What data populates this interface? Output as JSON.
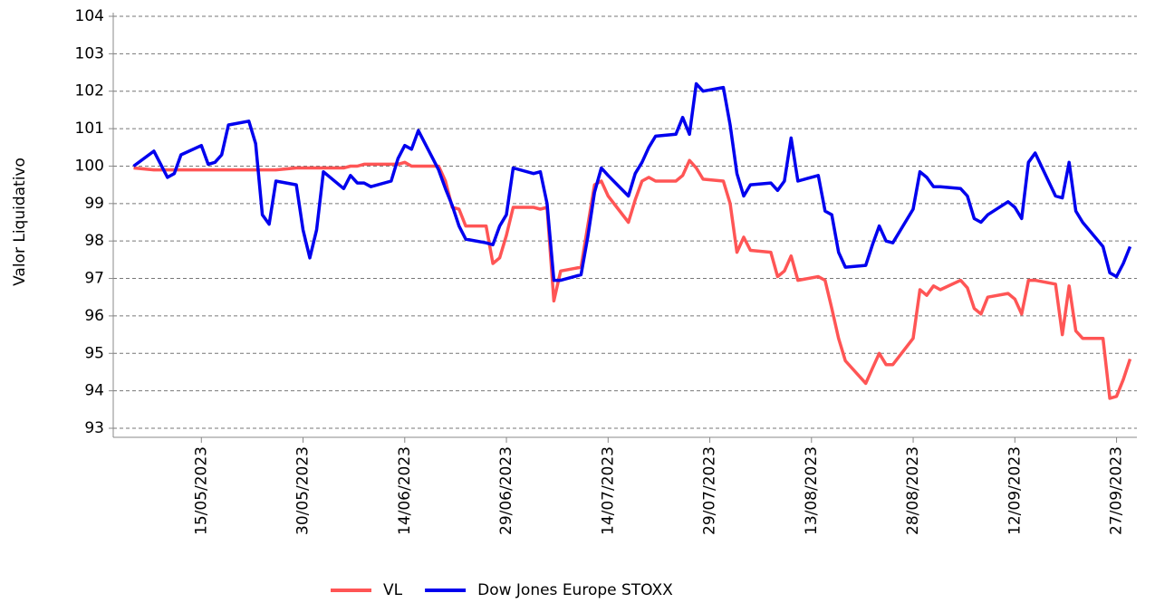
{
  "chart_data": {
    "type": "line",
    "y_label": "Valor Liquidativo",
    "x": [
      "05/05/2023",
      "08/05/2023",
      "10/05/2023",
      "11/05/2023",
      "12/05/2023",
      "15/05/2023",
      "16/05/2023",
      "17/05/2023",
      "18/05/2023",
      "19/05/2023",
      "22/05/2023",
      "23/05/2023",
      "24/05/2023",
      "25/05/2023",
      "26/05/2023",
      "29/05/2023",
      "30/05/2023",
      "31/05/2023",
      "01/06/2023",
      "02/06/2023",
      "05/06/2023",
      "06/06/2023",
      "07/06/2023",
      "08/06/2023",
      "09/06/2023",
      "12/06/2023",
      "13/06/2023",
      "14/06/2023",
      "15/06/2023",
      "16/06/2023",
      "19/06/2023",
      "20/06/2023",
      "21/06/2023",
      "22/06/2023",
      "23/06/2023",
      "26/06/2023",
      "27/06/2023",
      "28/06/2023",
      "29/06/2023",
      "30/06/2023",
      "03/07/2023",
      "04/07/2023",
      "05/07/2023",
      "06/07/2023",
      "07/07/2023",
      "10/07/2023",
      "11/07/2023",
      "12/07/2023",
      "13/07/2023",
      "14/07/2023",
      "17/07/2023",
      "18/07/2023",
      "19/07/2023",
      "20/07/2023",
      "21/07/2023",
      "24/07/2023",
      "25/07/2023",
      "26/07/2023",
      "27/07/2023",
      "28/07/2023",
      "31/07/2023",
      "01/08/2023",
      "02/08/2023",
      "03/08/2023",
      "04/08/2023",
      "07/08/2023",
      "08/08/2023",
      "09/08/2023",
      "10/08/2023",
      "11/08/2023",
      "14/08/2023",
      "15/08/2023",
      "16/08/2023",
      "17/08/2023",
      "18/08/2023",
      "21/08/2023",
      "22/08/2023",
      "23/08/2023",
      "24/08/2023",
      "25/08/2023",
      "28/08/2023",
      "29/08/2023",
      "30/08/2023",
      "31/08/2023",
      "01/09/2023",
      "04/09/2023",
      "05/09/2023",
      "06/09/2023",
      "07/09/2023",
      "08/09/2023",
      "11/09/2023",
      "12/09/2023",
      "13/09/2023",
      "14/09/2023",
      "15/09/2023",
      "18/09/2023",
      "19/09/2023",
      "20/09/2023",
      "21/09/2023",
      "22/09/2023",
      "25/09/2023",
      "26/09/2023",
      "27/09/2023",
      "28/09/2023",
      "29/09/2023"
    ],
    "series": [
      {
        "name": "VL",
        "color": "#ff5555",
        "values": [
          99.95,
          99.9,
          99.9,
          99.9,
          99.9,
          99.9,
          99.9,
          99.9,
          99.9,
          99.9,
          99.9,
          99.9,
          99.9,
          99.9,
          99.9,
          99.95,
          99.95,
          99.95,
          99.95,
          99.95,
          99.95,
          100.0,
          100.0,
          100.05,
          100.05,
          100.05,
          100.05,
          100.1,
          100.0,
          100.0,
          100.0,
          99.6,
          98.9,
          98.85,
          98.4,
          98.4,
          97.4,
          97.55,
          98.15,
          98.9,
          98.9,
          98.85,
          98.9,
          96.4,
          97.2,
          97.3,
          98.4,
          99.5,
          99.6,
          99.2,
          98.5,
          99.1,
          99.6,
          99.7,
          99.6,
          99.6,
          99.75,
          100.15,
          99.95,
          99.65,
          99.6,
          99.0,
          97.7,
          98.1,
          97.75,
          97.7,
          97.05,
          97.2,
          97.6,
          96.95,
          97.05,
          96.95,
          96.2,
          95.4,
          94.8,
          94.2,
          94.6,
          95.0,
          94.7,
          94.7,
          95.4,
          96.7,
          96.55,
          96.8,
          96.7,
          96.95,
          96.75,
          96.2,
          96.05,
          96.5,
          96.6,
          96.45,
          96.05,
          96.95,
          96.95,
          96.85,
          95.5,
          96.8,
          95.6,
          95.4,
          95.4,
          93.8,
          93.85,
          94.3,
          94.85
        ]
      },
      {
        "name": "Dow Jones Europe STOXX",
        "color": "#0000ee",
        "values": [
          100.0,
          100.4,
          99.7,
          99.8,
          100.3,
          100.55,
          100.05,
          100.1,
          100.3,
          101.1,
          101.2,
          100.6,
          98.7,
          98.45,
          99.6,
          99.5,
          98.3,
          97.55,
          98.3,
          99.85,
          99.4,
          99.75,
          99.55,
          99.55,
          99.45,
          99.6,
          100.2,
          100.55,
          100.45,
          100.95,
          99.9,
          99.4,
          98.95,
          98.4,
          98.05,
          97.95,
          97.9,
          98.4,
          98.7,
          99.95,
          99.8,
          99.85,
          99.0,
          96.95,
          96.95,
          97.1,
          98.1,
          99.3,
          99.95,
          99.75,
          99.2,
          99.8,
          100.1,
          100.5,
          100.8,
          100.85,
          101.3,
          100.85,
          102.2,
          102.0,
          102.1,
          101.1,
          99.8,
          99.2,
          99.5,
          99.55,
          99.35,
          99.6,
          100.75,
          99.6,
          99.75,
          98.8,
          98.7,
          97.7,
          97.3,
          97.35,
          97.9,
          98.4,
          98.0,
          97.95,
          98.85,
          99.85,
          99.7,
          99.45,
          99.45,
          99.4,
          99.2,
          98.6,
          98.5,
          98.7,
          99.05,
          98.9,
          98.6,
          100.1,
          100.35,
          99.2,
          99.15,
          100.1,
          98.8,
          98.5,
          97.85,
          97.15,
          97.05,
          97.4,
          97.85
        ]
      }
    ],
    "xlim": [
      "02/05/2023",
      "30/09/2023"
    ],
    "xticks": [
      "15/05/2023",
      "30/05/2023",
      "14/06/2023",
      "29/06/2023",
      "14/07/2023",
      "29/07/2023",
      "13/08/2023",
      "28/08/2023",
      "12/09/2023",
      "27/09/2023"
    ],
    "ylim": [
      93,
      104
    ],
    "yticks": [
      93,
      94,
      95,
      96,
      97,
      98,
      99,
      100,
      101,
      102,
      103,
      104
    ],
    "grid": true
  }
}
